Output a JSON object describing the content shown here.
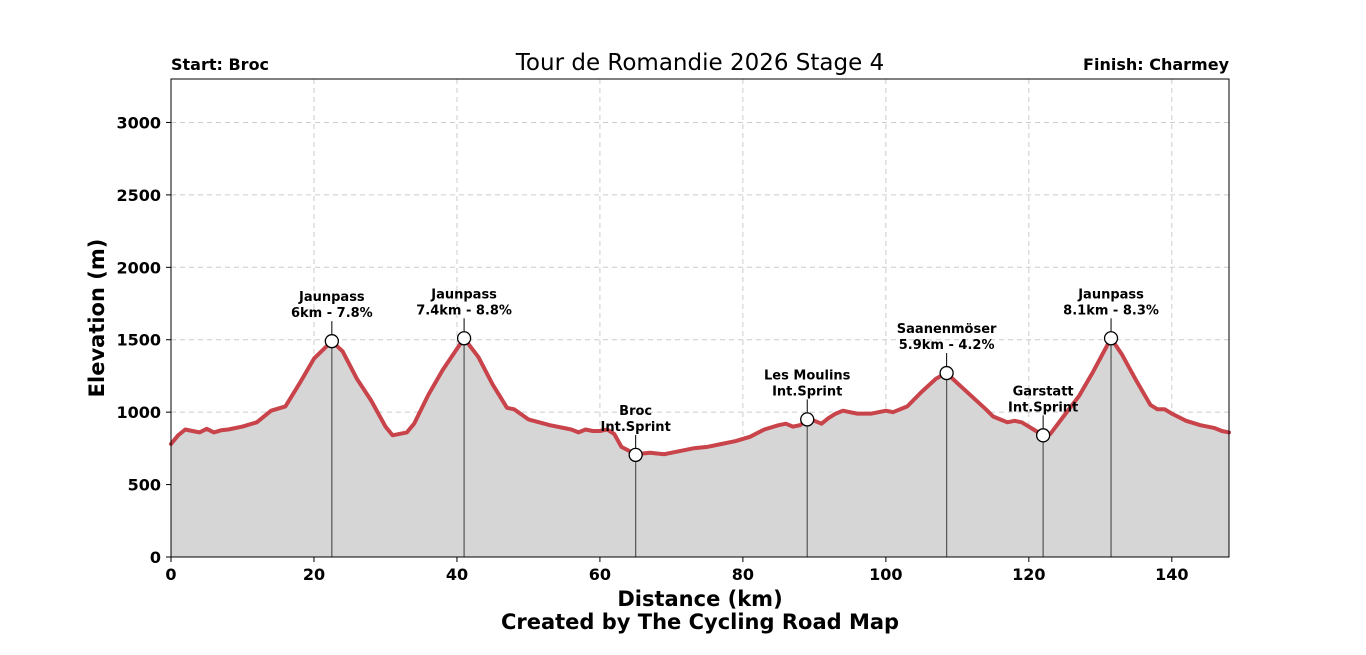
{
  "chart_data": {
    "type": "area",
    "title": "Tour de Romandie 2026 Stage 4",
    "start_label": "Start: Broc",
    "finish_label": "Finish: Charmey",
    "xlabel": "Distance (km)",
    "ylabel": "Elevation (m)",
    "credit": "Created by The Cycling Road Map",
    "xlim": [
      0,
      148
    ],
    "ylim": [
      0,
      3300
    ],
    "xticks": [
      "0",
      "20",
      "40",
      "60",
      "80",
      "100",
      "120",
      "140"
    ],
    "yticks": [
      "0",
      "500",
      "1000",
      "1500",
      "2000",
      "2500",
      "3000"
    ],
    "grid": true,
    "colors": {
      "line": "#c8434a",
      "fill": "#d6d6d6",
      "marker_line": "#555555"
    },
    "profile": {
      "x": [
        0,
        1,
        2,
        3,
        4,
        5,
        6,
        7,
        8,
        10,
        12,
        14,
        16,
        18,
        20,
        22.5,
        24,
        26,
        28,
        30,
        31,
        33,
        34,
        36,
        38,
        41,
        43,
        45,
        47,
        48,
        50,
        53,
        56,
        57,
        58,
        59,
        60,
        61,
        62,
        63,
        65,
        67,
        69,
        71,
        73,
        75,
        77,
        79,
        81,
        83,
        85,
        86,
        87,
        88,
        89,
        90,
        91,
        92,
        93,
        94,
        95,
        96,
        98,
        100,
        101,
        103,
        105,
        107,
        108.5,
        110,
        112,
        114,
        115,
        116,
        117,
        118,
        119,
        120,
        121,
        122,
        123,
        125,
        127,
        129,
        131.5,
        133,
        135,
        137,
        138,
        139,
        140,
        142,
        144,
        146,
        147,
        148
      ],
      "y": [
        780,
        840,
        880,
        870,
        860,
        885,
        860,
        875,
        880,
        900,
        930,
        1010,
        1040,
        1200,
        1370,
        1490,
        1420,
        1230,
        1080,
        900,
        840,
        860,
        920,
        1120,
        1290,
        1510,
        1380,
        1190,
        1030,
        1020,
        950,
        910,
        880,
        860,
        880,
        870,
        870,
        880,
        850,
        760,
        710,
        720,
        710,
        730,
        750,
        760,
        780,
        800,
        830,
        880,
        910,
        920,
        900,
        910,
        950,
        940,
        920,
        960,
        990,
        1010,
        1000,
        990,
        990,
        1010,
        1000,
        1040,
        1140,
        1230,
        1270,
        1200,
        1110,
        1020,
        970,
        950,
        930,
        940,
        930,
        900,
        870,
        840,
        850,
        980,
        1110,
        1280,
        1510,
        1400,
        1220,
        1050,
        1020,
        1020,
        990,
        940,
        910,
        890,
        870,
        860
      ]
    },
    "annotations": [
      {
        "x": 22.5,
        "y": 1490,
        "line1": "Jaunpass",
        "line2": "6km - 7.8%"
      },
      {
        "x": 41,
        "y": 1510,
        "line1": "Jaunpass",
        "line2": "7.4km - 8.8%"
      },
      {
        "x": 65,
        "y": 705,
        "line1": "Broc",
        "line2": "Int.Sprint"
      },
      {
        "x": 89,
        "y": 950,
        "line1": "Les Moulins",
        "line2": "Int.Sprint"
      },
      {
        "x": 108.5,
        "y": 1270,
        "line1": "Saanenmöser",
        "line2": "5.9km - 4.2%"
      },
      {
        "x": 122,
        "y": 840,
        "line1": "Garstatt",
        "line2": "Int.Sprint"
      },
      {
        "x": 131.5,
        "y": 1510,
        "line1": "Jaunpass",
        "line2": "8.1km - 8.3%"
      }
    ]
  }
}
